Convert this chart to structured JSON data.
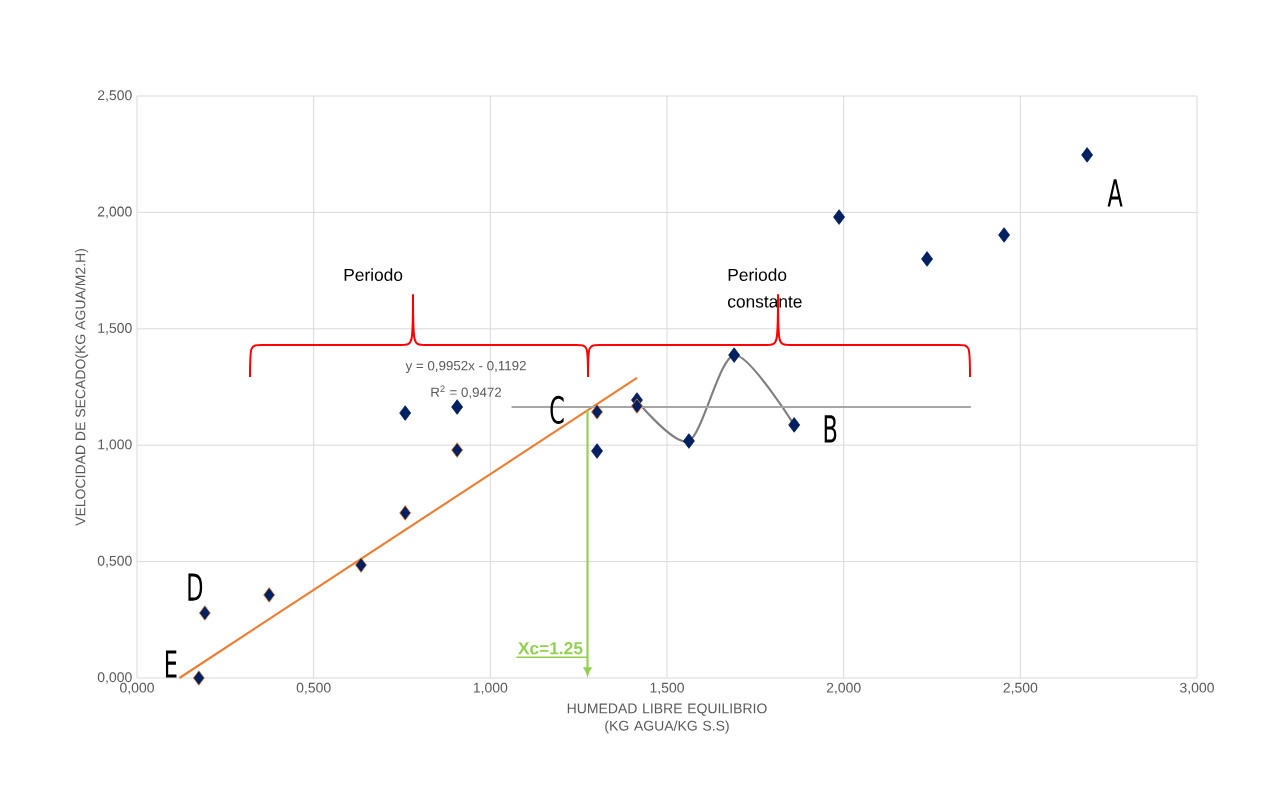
{
  "chart_data": {
    "type": "scatter",
    "xlabel": "HUMEDAD LIBRE EQUILIBRIO (KG AGUA/KG S.S)",
    "ylabel": "VELOCIDAD DE SECADO(KG AGUA/M2.H)",
    "xlim": [
      0,
      3
    ],
    "ylim": [
      0,
      2.5
    ],
    "xticks": [
      {
        "value": 0,
        "label": "0,000"
      },
      {
        "value": 0.5,
        "label": "0,500"
      },
      {
        "value": 1,
        "label": "1,000"
      },
      {
        "value": 1.5,
        "label": "1,500"
      },
      {
        "value": 2,
        "label": "2,000"
      },
      {
        "value": 2.5,
        "label": "2,500"
      },
      {
        "value": 3,
        "label": "3,000"
      }
    ],
    "yticks": [
      {
        "value": 0,
        "label": "0,000"
      },
      {
        "value": 0.5,
        "label": "0,500"
      },
      {
        "value": 1,
        "label": "1,000"
      },
      {
        "value": 1.5,
        "label": "1,500"
      },
      {
        "value": 2,
        "label": "2,000"
      },
      {
        "value": 2.5,
        "label": "2,500"
      }
    ],
    "grid": true,
    "marker": "diamond",
    "series": [
      {
        "color": "#002060",
        "x": [
          2.689,
          2.454,
          2.236,
          1.987,
          1.86,
          1.69,
          1.562,
          1.415,
          1.302,
          0.906,
          0.759
        ],
        "values": [
          2.247,
          1.903,
          1.8,
          1.98,
          1.087,
          1.387,
          1.018,
          1.194,
          0.975,
          1.164,
          1.138
        ]
      },
      {
        "color": "#ed7d31",
        "x": [
          1.302,
          1.415,
          0.906,
          0.759,
          0.634,
          0.374,
          0.192,
          0.175
        ],
        "values": [
          1.143,
          1.168,
          0.979,
          0.709,
          0.485,
          0.357,
          0.279,
          0
        ]
      },
      {
        "type": "line",
        "marker": "none",
        "color": "#ed7d31",
        "x": [
          0.12,
          1.415
        ],
        "values": [
          0,
          1.289
        ]
      },
      {
        "type": "line",
        "marker": "none",
        "color": "#7f7f7f",
        "x": [
          1.415,
          1.562,
          1.69,
          1.86
        ],
        "values": [
          1.19,
          1.018,
          1.387,
          1.087
        ]
      },
      {
        "type": "line",
        "marker": "none",
        "color": "#a6a6a6",
        "x": [
          1.06,
          2.36
        ],
        "values": [
          1.164,
          1.164
        ]
      }
    ],
    "annotations": [
      "Periodo",
      "Periodo constante",
      {
        "text": "A",
        "x": 2.689,
        "y": 2.247
      },
      {
        "text": "B",
        "x": 1.86,
        "y": 1.087
      },
      {
        "text": "C",
        "x": 1.302,
        "y": 1.143
      },
      {
        "text": "D",
        "x": 0.192,
        "y": 0.279
      },
      {
        "text": "E",
        "x": 0.175,
        "y": 0
      },
      "y = 0,9952x - 0,1192",
      "R$^{2}$ = 0,9472",
      {
        "text": "Xc=1.25",
        "x": 1.275,
        "y": 1.15
      }
    ]
  }
}
